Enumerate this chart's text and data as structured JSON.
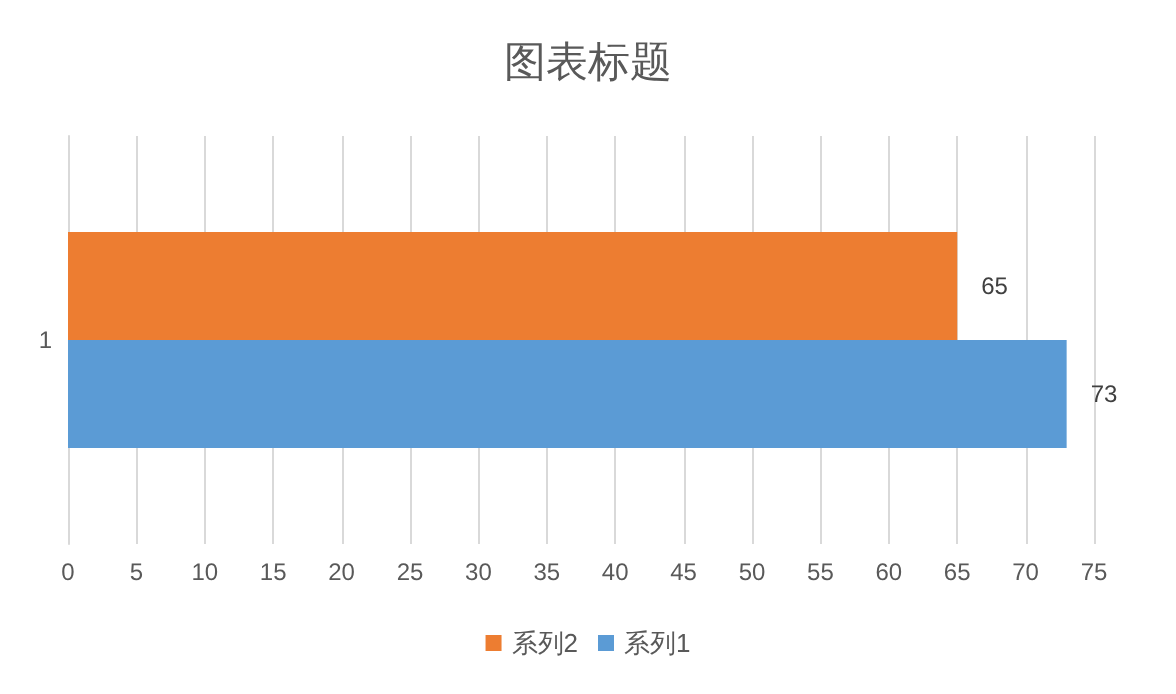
{
  "chart_data": {
    "type": "bar",
    "orientation": "horizontal",
    "title": "图表标题",
    "categories": [
      "1"
    ],
    "series": [
      {
        "name": "系列1",
        "color": "#5b9bd5",
        "values": [
          73
        ]
      },
      {
        "name": "系列2",
        "color": "#ed7d31",
        "values": [
          65
        ]
      }
    ],
    "xlim": [
      0,
      75
    ],
    "xticks": [
      0,
      5,
      10,
      15,
      20,
      25,
      30,
      35,
      40,
      45,
      50,
      55,
      60,
      65,
      70,
      75
    ],
    "grid": "x",
    "legend": "bottom",
    "data_labels": true
  }
}
